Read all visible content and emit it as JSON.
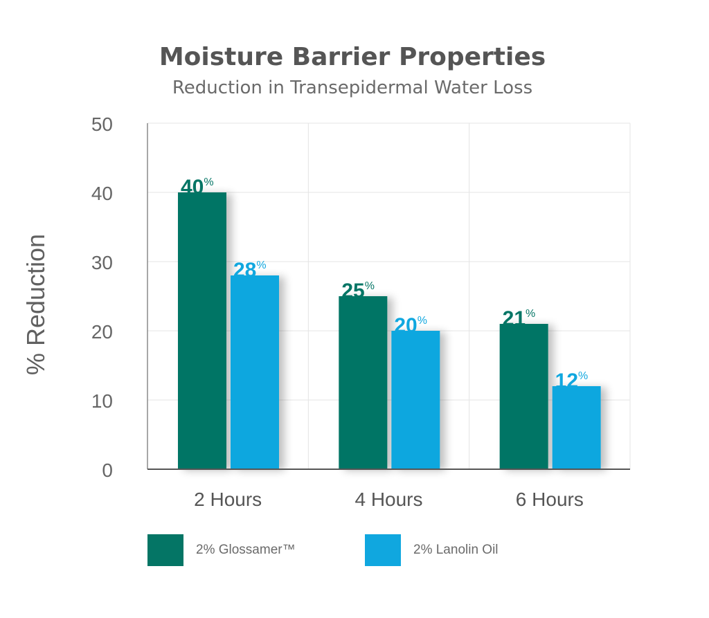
{
  "chart_data": {
    "type": "bar",
    "title": "Moisture Barrier Properties",
    "subtitle": "Reduction in Transepidermal Water Loss",
    "ylabel": "% Reduction",
    "xlabel": "",
    "categories": [
      "2 Hours",
      "4 Hours",
      "6 Hours"
    ],
    "series": [
      {
        "name": "2% Glossamer™",
        "color": "#047565",
        "values": [
          40,
          25,
          21
        ],
        "labels": [
          "40",
          "25",
          "21"
        ]
      },
      {
        "name": "2% Lanolin Oil",
        "color": "#10a7df",
        "values": [
          28,
          20,
          12
        ],
        "labels": [
          "28",
          "20",
          "12"
        ]
      }
    ],
    "label_suffix": "%",
    "ylim": [
      0,
      50
    ],
    "yticks": [
      "0",
      "10",
      "20",
      "30",
      "40",
      "50"
    ],
    "grid": true,
    "legend_position": "bottom"
  }
}
